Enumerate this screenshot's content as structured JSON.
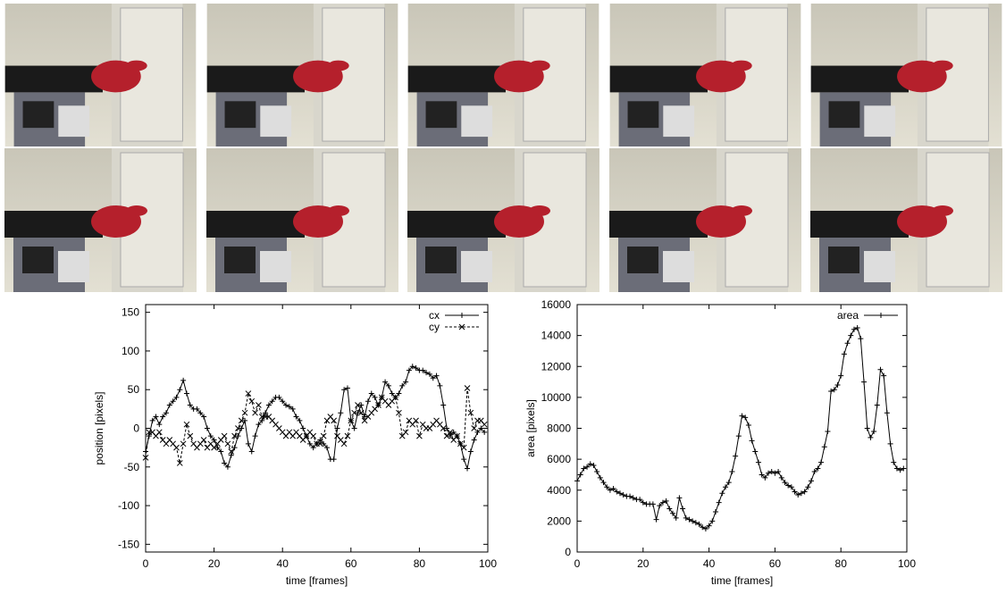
{
  "chart_data": [
    {
      "type": "line",
      "xlabel": "time [frames]",
      "ylabel": "position [pixels]",
      "xlim": [
        0,
        100
      ],
      "xticks": [
        0,
        20,
        40,
        60,
        80,
        100
      ],
      "ylim": [
        -160,
        160
      ],
      "yticks": [
        -150,
        -100,
        -50,
        0,
        50,
        100,
        150
      ],
      "legend": "top-right",
      "x": [
        0,
        1,
        2,
        3,
        4,
        5,
        6,
        7,
        8,
        9,
        10,
        11,
        12,
        13,
        14,
        15,
        16,
        17,
        18,
        19,
        20,
        21,
        22,
        23,
        24,
        25,
        26,
        27,
        28,
        29,
        30,
        31,
        32,
        33,
        34,
        35,
        36,
        37,
        38,
        39,
        40,
        41,
        42,
        43,
        44,
        45,
        46,
        47,
        48,
        49,
        50,
        51,
        52,
        53,
        54,
        55,
        56,
        57,
        58,
        59,
        60,
        61,
        62,
        63,
        64,
        65,
        66,
        67,
        68,
        69,
        70,
        71,
        72,
        73,
        74,
        75,
        76,
        77,
        78,
        79,
        80,
        81,
        82,
        83,
        84,
        85,
        86,
        87,
        88,
        89,
        90,
        91,
        92,
        93,
        94,
        95,
        96,
        97,
        98,
        99
      ],
      "series": [
        {
          "name": "cx",
          "color": "#000000",
          "dash": false,
          "marker": "plus",
          "values": [
            -30,
            -10,
            10,
            15,
            5,
            15,
            20,
            30,
            35,
            40,
            50,
            62,
            45,
            30,
            25,
            25,
            20,
            15,
            0,
            -10,
            -15,
            -25,
            -30,
            -45,
            -50,
            -35,
            -25,
            -10,
            0,
            10,
            -20,
            -30,
            -10,
            5,
            10,
            20,
            30,
            35,
            40,
            40,
            35,
            30,
            28,
            25,
            15,
            10,
            0,
            -10,
            -20,
            -25,
            -20,
            -15,
            -20,
            -25,
            -40,
            -40,
            0,
            20,
            50,
            52,
            10,
            0,
            20,
            30,
            15,
            35,
            45,
            40,
            30,
            40,
            60,
            55,
            45,
            40,
            45,
            55,
            60,
            75,
            80,
            78,
            75,
            75,
            72,
            70,
            65,
            68,
            55,
            30,
            0,
            -10,
            -5,
            -10,
            -20,
            -40,
            -52,
            -30,
            -15,
            -5,
            0,
            -5
          ]
        },
        {
          "name": "cy",
          "color": "#000000",
          "dash": true,
          "marker": "cross",
          "values": [
            -38,
            -5,
            -5,
            -10,
            -5,
            -15,
            -20,
            -15,
            -20,
            -25,
            -45,
            -20,
            5,
            -10,
            -20,
            -25,
            -20,
            -15,
            -25,
            -20,
            -25,
            -20,
            -15,
            -10,
            -20,
            -30,
            -10,
            0,
            10,
            20,
            45,
            35,
            20,
            30,
            15,
            15,
            15,
            10,
            5,
            0,
            -5,
            -10,
            -5,
            -10,
            -5,
            -10,
            -15,
            -10,
            -5,
            -10,
            -20,
            -20,
            -10,
            10,
            15,
            10,
            -10,
            -15,
            -20,
            -10,
            10,
            20,
            30,
            20,
            10,
            15,
            20,
            25,
            30,
            40,
            35,
            30,
            35,
            40,
            20,
            -10,
            -5,
            10,
            5,
            10,
            -10,
            5,
            0,
            0,
            5,
            10,
            5,
            0,
            -10,
            -5,
            -15,
            -10,
            -20,
            -25,
            52,
            20,
            0,
            10,
            10,
            5
          ]
        }
      ]
    },
    {
      "type": "line",
      "xlabel": "time [frames]",
      "ylabel": "area [pixels]",
      "xlim": [
        0,
        100
      ],
      "xticks": [
        0,
        20,
        40,
        60,
        80,
        100
      ],
      "ylim": [
        0,
        16000
      ],
      "yticks": [
        0,
        2000,
        4000,
        6000,
        8000,
        10000,
        12000,
        14000,
        16000
      ],
      "legend": "top-right",
      "x": [
        0,
        1,
        2,
        3,
        4,
        5,
        6,
        7,
        8,
        9,
        10,
        11,
        12,
        13,
        14,
        15,
        16,
        17,
        18,
        19,
        20,
        21,
        22,
        23,
        24,
        25,
        26,
        27,
        28,
        29,
        30,
        31,
        32,
        33,
        34,
        35,
        36,
        37,
        38,
        39,
        40,
        41,
        42,
        43,
        44,
        45,
        46,
        47,
        48,
        49,
        50,
        51,
        52,
        53,
        54,
        55,
        56,
        57,
        58,
        59,
        60,
        61,
        62,
        63,
        64,
        65,
        66,
        67,
        68,
        69,
        70,
        71,
        72,
        73,
        74,
        75,
        76,
        77,
        78,
        79,
        80,
        81,
        82,
        83,
        84,
        85,
        86,
        87,
        88,
        89,
        90,
        91,
        92,
        93,
        94,
        95,
        96,
        97,
        98,
        99
      ],
      "series": [
        {
          "name": "area",
          "color": "#000000",
          "dash": false,
          "marker": "plus",
          "values": [
            4600,
            5000,
            5400,
            5500,
            5700,
            5600,
            5200,
            4800,
            4500,
            4200,
            4000,
            4100,
            3900,
            3800,
            3700,
            3600,
            3600,
            3500,
            3400,
            3400,
            3200,
            3100,
            3100,
            3100,
            2100,
            3000,
            3200,
            3300,
            2800,
            2500,
            2200,
            3500,
            2800,
            2200,
            2100,
            2000,
            1900,
            1800,
            1600,
            1500,
            1700,
            2000,
            2600,
            3200,
            3800,
            4200,
            4500,
            5200,
            6200,
            7500,
            8800,
            8700,
            8200,
            7200,
            6500,
            5800,
            5000,
            4800,
            5100,
            5200,
            5100,
            5200,
            4800,
            4500,
            4300,
            4200,
            3900,
            3700,
            3800,
            3900,
            4200,
            4600,
            5200,
            5400,
            5800,
            6800,
            7800,
            10400,
            10500,
            10800,
            11400,
            12800,
            13500,
            14000,
            14400,
            14500,
            13800,
            11000,
            8000,
            7400,
            7800,
            9500,
            11800,
            11400,
            9000,
            7000,
            5800,
            5400,
            5300,
            5400
          ]
        }
      ]
    }
  ]
}
